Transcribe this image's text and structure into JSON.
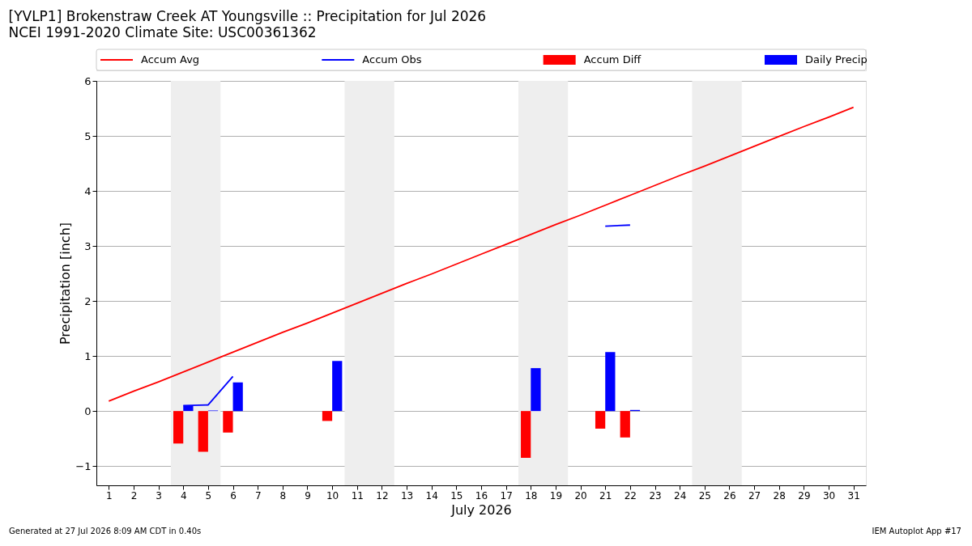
{
  "chart_data": {
    "type": "bar",
    "title": "[YVLP1] Brokenstraw Creek  AT Youngsville :: Precipitation for Jul 2026",
    "subtitle": "NCEI 1991-2020 Climate Site: USC00361362",
    "xlabel": "July 2026",
    "ylabel": "Precipitation [inch]",
    "x": [
      1,
      2,
      3,
      4,
      5,
      6,
      7,
      8,
      9,
      10,
      11,
      12,
      13,
      14,
      15,
      16,
      17,
      18,
      19,
      20,
      21,
      22,
      23,
      24,
      25,
      26,
      27,
      28,
      29,
      30,
      31
    ],
    "series": [
      {
        "name": "Accum Avg",
        "type": "line",
        "color": "#ff0000",
        "values": [
          0.18,
          0.36,
          0.53,
          0.71,
          0.89,
          1.07,
          1.25,
          1.43,
          1.6,
          1.78,
          1.96,
          2.14,
          2.32,
          2.49,
          2.67,
          2.85,
          3.03,
          3.21,
          3.39,
          3.56,
          3.74,
          3.92,
          4.1,
          4.28,
          4.45,
          4.63,
          4.81,
          4.99,
          5.17,
          5.34,
          5.52
        ]
      },
      {
        "name": "Accum Obs",
        "type": "line",
        "color": "#0000ff",
        "values": [
          null,
          null,
          null,
          0.1,
          0.11,
          0.63,
          null,
          null,
          null,
          null,
          null,
          null,
          null,
          null,
          null,
          null,
          null,
          null,
          null,
          null,
          3.36,
          3.38,
          null,
          null,
          null,
          null,
          null,
          null,
          null,
          null,
          null
        ]
      },
      {
        "name": "Accum Diff",
        "type": "bar",
        "color": "#ff0000",
        "values": [
          null,
          null,
          null,
          -0.59,
          -0.74,
          -0.39,
          null,
          null,
          null,
          -0.18,
          null,
          null,
          null,
          null,
          null,
          null,
          null,
          -0.85,
          null,
          null,
          -0.32,
          -0.48,
          null,
          null,
          null,
          null,
          null,
          null,
          null,
          null,
          null
        ]
      },
      {
        "name": "Daily Precip",
        "type": "bar",
        "color": "#0000ff",
        "values": [
          null,
          null,
          null,
          0.1,
          0.01,
          0.52,
          null,
          null,
          null,
          0.91,
          null,
          null,
          null,
          null,
          null,
          null,
          null,
          0.78,
          null,
          null,
          1.07,
          0.02,
          null,
          null,
          null,
          null,
          null,
          null,
          null,
          null,
          null
        ]
      }
    ],
    "xlim": [
      0.5,
      31.5
    ],
    "xticks": [
      1,
      2,
      3,
      4,
      5,
      6,
      7,
      8,
      9,
      10,
      11,
      12,
      13,
      14,
      15,
      16,
      17,
      18,
      19,
      20,
      21,
      22,
      23,
      24,
      25,
      26,
      27,
      28,
      29,
      30,
      31
    ],
    "ylim": [
      -1.35,
      6
    ],
    "yticks": [
      {
        "value": -1,
        "label": "−1"
      },
      0,
      1,
      2,
      3,
      4,
      5,
      6
    ],
    "grid": "y",
    "legend": "top",
    "bands": [
      {
        "axis": "x",
        "from": 3.5,
        "to": 5.5,
        "color": "#eeeeee"
      },
      {
        "axis": "x",
        "from": 10.5,
        "to": 12.5,
        "color": "#eeeeee"
      },
      {
        "axis": "x",
        "from": 17.5,
        "to": 19.5,
        "color": "#eeeeee"
      },
      {
        "axis": "x",
        "from": 24.5,
        "to": 26.5,
        "color": "#eeeeee"
      }
    ],
    "annotations": [
      "Generated at 27 Jul 2026 8:09 AM CDT in 0.40s",
      "IEM Autoplot App #17"
    ]
  }
}
